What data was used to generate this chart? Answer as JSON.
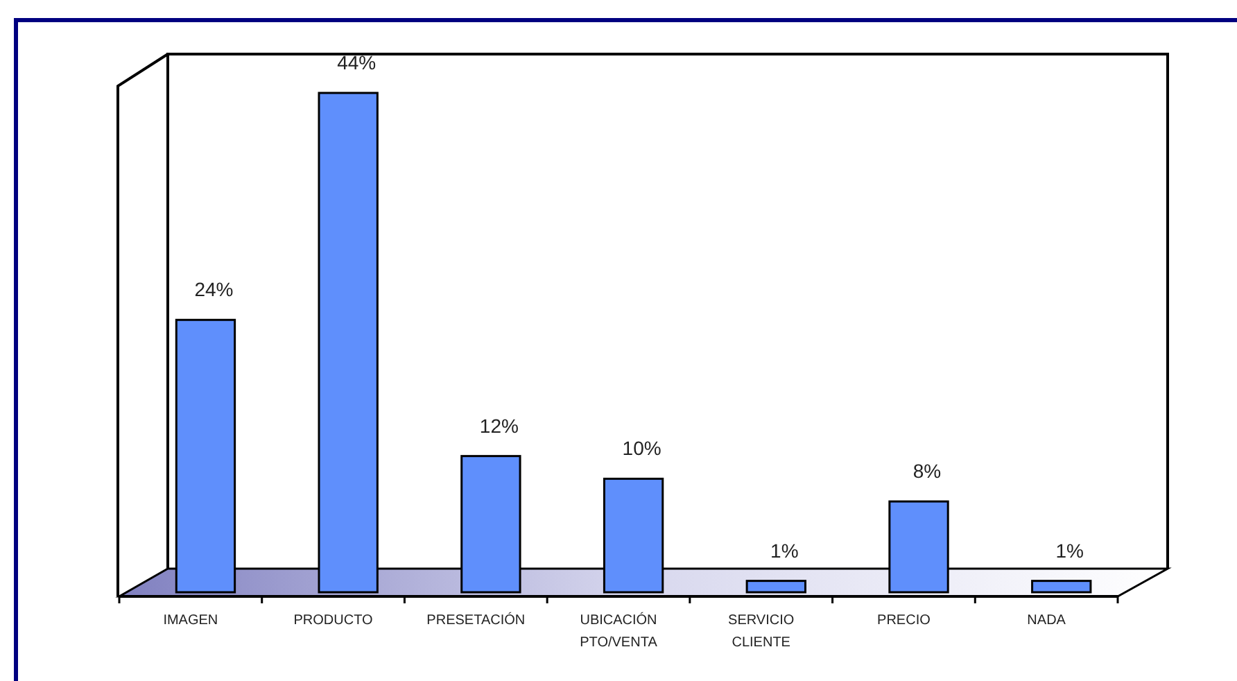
{
  "chart_data": {
    "type": "bar",
    "categories": [
      "IMAGEN",
      "PRODUCTO",
      "PRESETACIÓN",
      "UBICACIÓN\nPTO/VENTA",
      "SERVICIO\nCLIENTE",
      "PRECIO",
      "NADA"
    ],
    "values": [
      24,
      44,
      12,
      10,
      1,
      8,
      1
    ],
    "value_labels": [
      "24%",
      "44%",
      "12%",
      "10%",
      "1%",
      "8%",
      "1%"
    ],
    "color": "#5f8ffc"
  }
}
